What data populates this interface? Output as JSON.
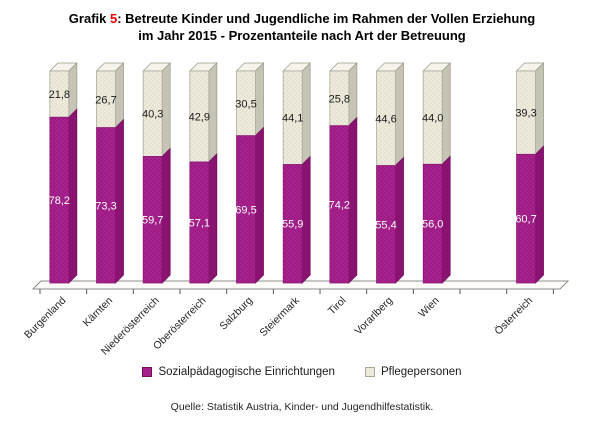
{
  "title": {
    "line1_prefix": "Grafik ",
    "line1_number": "5",
    "line1_rest": ": Betreute Kinder und Jugendliche im Rahmen der Vollen Erziehung",
    "line2": "im Jahr 2015 - Prozentanteile nach Art der Betreuung",
    "number_color": "#ee0000"
  },
  "chart_data": {
    "type": "bar",
    "style": "3d-stacked-column",
    "stacked": true,
    "unit": "percent",
    "categories": [
      "Burgenland",
      "Kärnten",
      "Niederösterreich",
      "Oberösterreich",
      "Salzburg",
      "Steiermark",
      "Tirol",
      "Vorarlberg",
      "Wien",
      "Österreich"
    ],
    "series": [
      {
        "name": "Sozialpädagogische Einrichtungen",
        "color": "#a6218d",
        "values": [
          78.2,
          73.3,
          59.7,
          57.1,
          69.5,
          55.9,
          74.2,
          55.4,
          56.0,
          60.7
        ]
      },
      {
        "name": "Pflegepersonen",
        "color": "#edeadc",
        "values": [
          21.8,
          26.7,
          40.3,
          42.9,
          30.5,
          44.1,
          25.8,
          44.6,
          44.0,
          39.3
        ]
      }
    ],
    "value_label_decimal_separator": ",",
    "ylim": [
      0,
      100
    ],
    "grid": false,
    "legend_position": "bottom",
    "gap_slot_before_category": "Österreich",
    "x_axis_label_rotation_deg": -45
  },
  "source": "Quelle: Statistik Austria, Kinder- und Jugendhilfestatistik."
}
